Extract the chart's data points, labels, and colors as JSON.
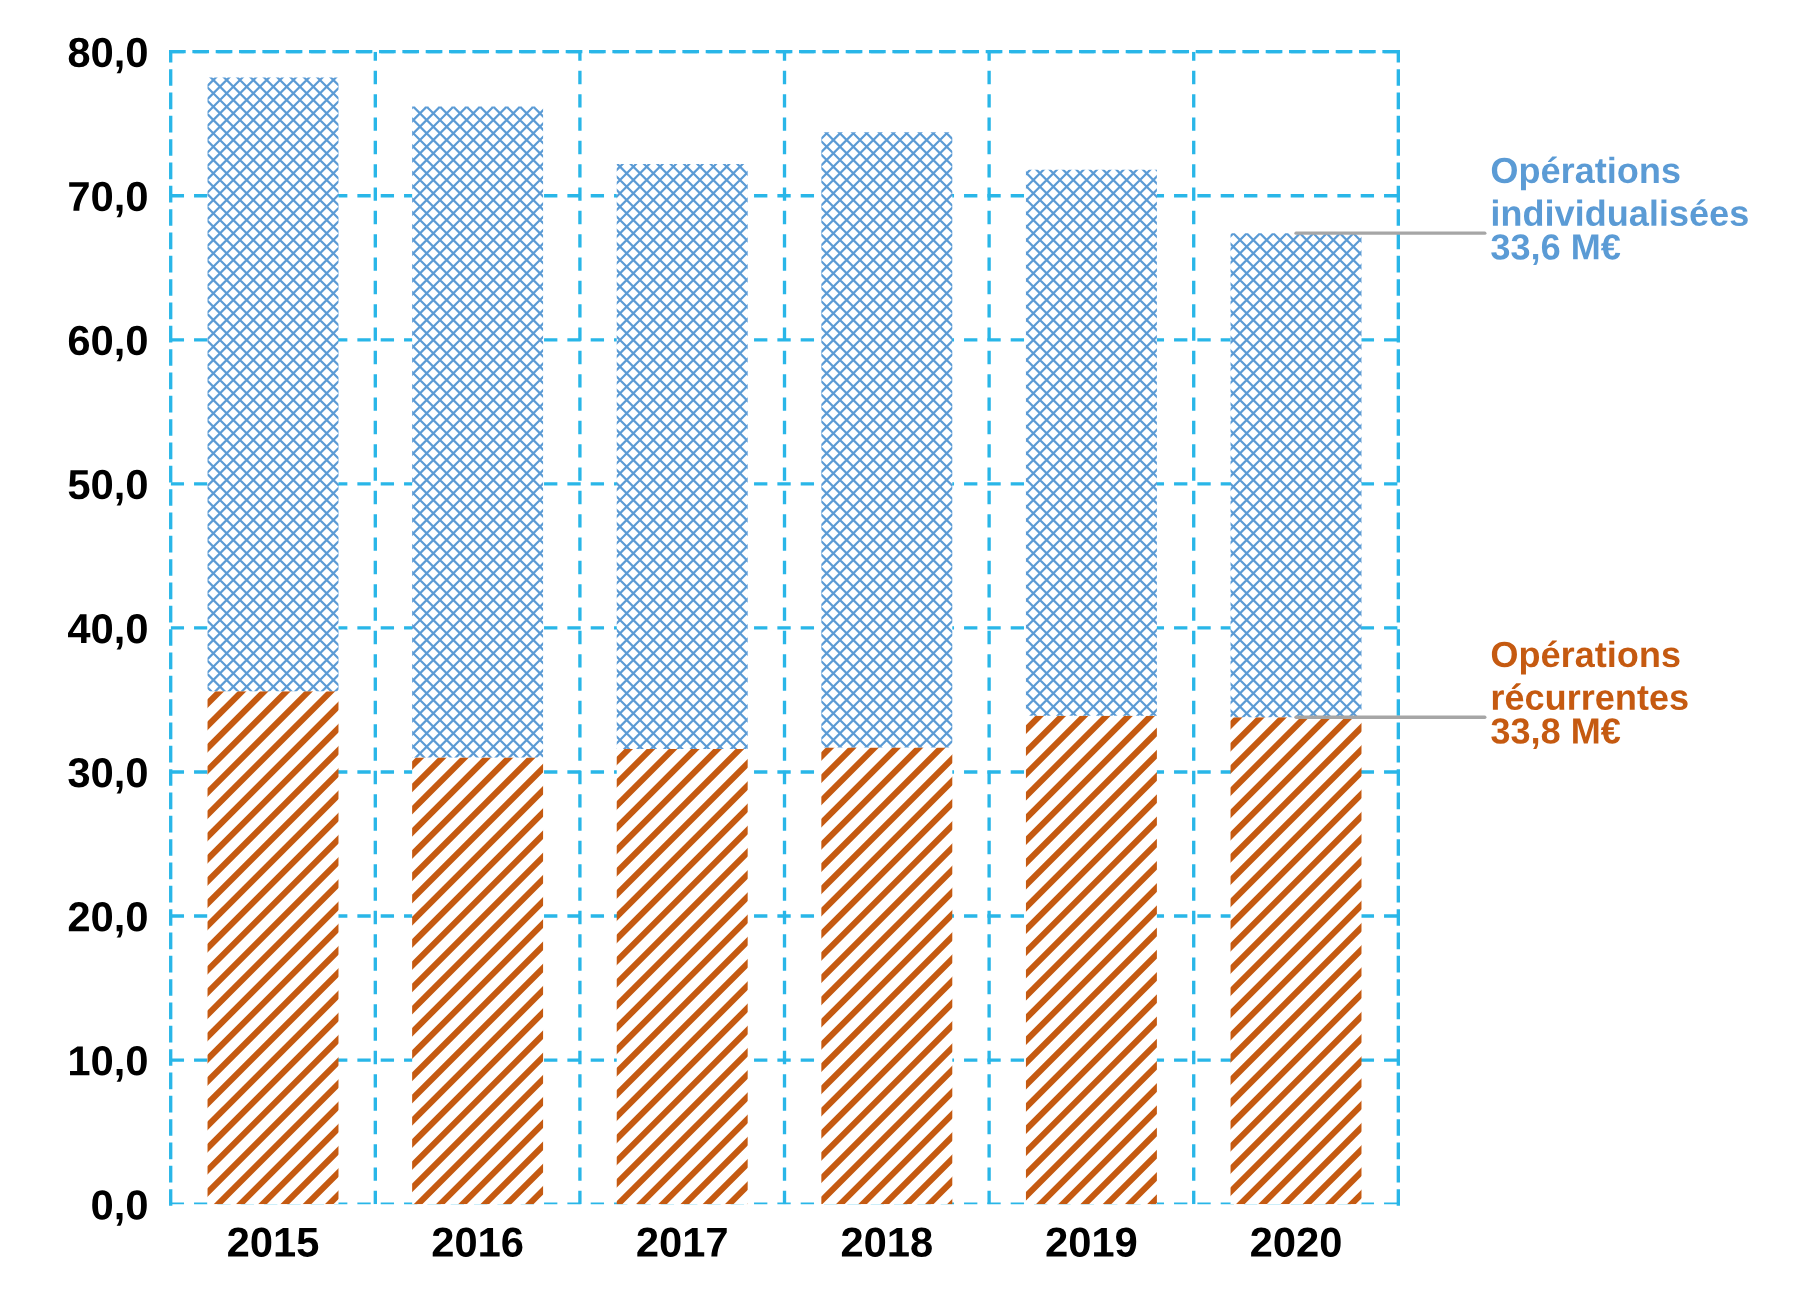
{
  "chart_data": {
    "type": "bar",
    "stacked": true,
    "categories": [
      "2015",
      "2016",
      "2017",
      "2018",
      "2019",
      "2020"
    ],
    "series": [
      {
        "name": "Opérations récurrentes",
        "color": "#c55a11",
        "values": [
          35.6,
          31.0,
          31.6,
          31.7,
          33.9,
          33.8
        ]
      },
      {
        "name": "Opérations individualisées",
        "color": "#5b9bd5",
        "values": [
          42.6,
          45.2,
          40.6,
          42.7,
          37.9,
          33.6
        ]
      }
    ],
    "annotations": [
      {
        "text": "33,8 M€",
        "x": "2020",
        "y": 33.8
      },
      {
        "text": "33,6 M€",
        "x": "2020",
        "y": 67.4
      }
    ],
    "ylim": [
      0,
      80
    ],
    "yticks": [
      {
        "value": 0,
        "label": "0,0"
      },
      {
        "value": 10,
        "label": "10,0"
      },
      {
        "value": 20,
        "label": "20,0"
      },
      {
        "value": 30,
        "label": "30,0"
      },
      {
        "value": 40,
        "label": "40,0"
      },
      {
        "value": 50,
        "label": "50,0"
      },
      {
        "value": 60,
        "label": "60,0"
      },
      {
        "value": 70,
        "label": "70,0"
      },
      {
        "value": 80,
        "label": "80,0"
      }
    ],
    "grid": true,
    "legend": false
  }
}
